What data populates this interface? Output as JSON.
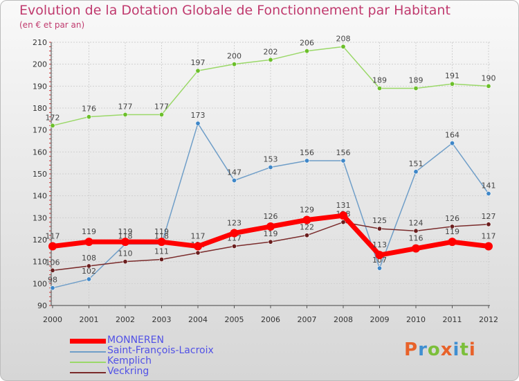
{
  "title": "Evolution de la Dotation Globale de Fonctionnement par Habitant",
  "subtitle": "(en € et par an)",
  "brand": {
    "text": "Proxiti",
    "letter_colors": [
      "#e8622a",
      "#3f8fd1",
      "#7bbf3a",
      "#e8622a",
      "#3f8fd1",
      "#7bbf3a",
      "#e8622a"
    ]
  },
  "chart_data": {
    "type": "line",
    "title": "Evolution de la Dotation Globale de Fonctionnement par Habitant",
    "subtitle": "(en € et par an)",
    "xlabel": "",
    "ylabel": "",
    "x": [
      "2000",
      "2001",
      "2002",
      "2003",
      "2004",
      "2005",
      "2006",
      "2007",
      "2008",
      "2009",
      "2010",
      "2011",
      "2012"
    ],
    "ylim": [
      90,
      210
    ],
    "yticks": [
      90,
      100,
      110,
      120,
      130,
      140,
      150,
      160,
      170,
      180,
      190,
      200,
      210
    ],
    "grid": true,
    "legend_position": "bottom-left",
    "series": [
      {
        "name": "MONNEREN",
        "color": "#ff0000",
        "marker_color": "#ff0000",
        "emphasis": "thick",
        "label_dir": "above",
        "values": [
          117,
          119,
          119,
          119,
          117,
          123,
          126,
          129,
          131,
          113,
          116,
          119,
          117
        ]
      },
      {
        "name": "Saint-François-Lacroix",
        "color": "#6f9ec8",
        "marker_color": "#3f87c8",
        "emphasis": "normal",
        "label_dir": "above",
        "values": [
          98,
          102,
          118,
          118,
          173,
          147,
          153,
          156,
          156,
          107,
          151,
          164,
          141
        ]
      },
      {
        "name": "Kemplich",
        "color": "#9ad868",
        "marker_color": "#6bbf2a",
        "emphasis": "normal",
        "label_dir": "above",
        "values": [
          172,
          176,
          177,
          177,
          197,
          200,
          202,
          206,
          208,
          189,
          189,
          191,
          190
        ]
      },
      {
        "name": "Veckring",
        "color": "#7a2b2b",
        "marker_color": "#6a1e1e",
        "emphasis": "normal",
        "label_dir": "above",
        "values": [
          106,
          108,
          110,
          111,
          114,
          117,
          119,
          122,
          128,
          125,
          124,
          126,
          127
        ]
      }
    ]
  }
}
